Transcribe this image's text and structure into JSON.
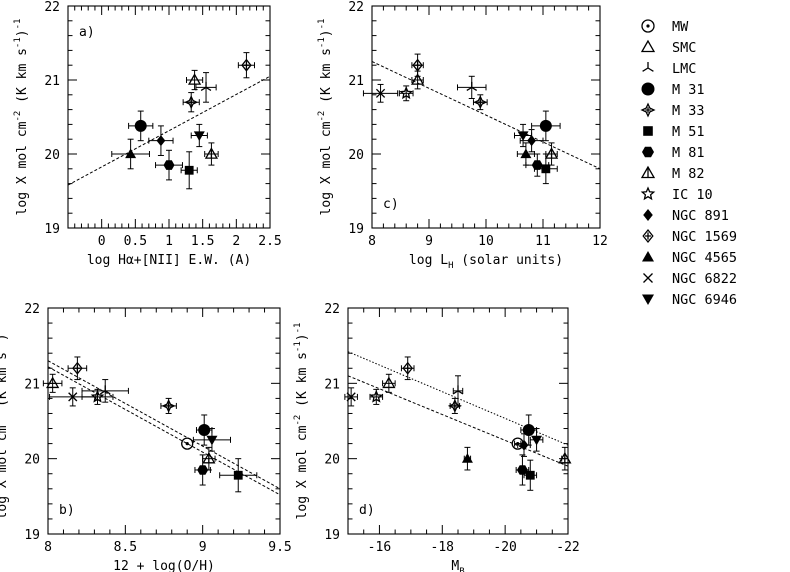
{
  "chart_data": [
    {
      "type": "scatter",
      "panel_label": "a)",
      "xlabel": "log Hα+[NII] E.W. (A)",
      "ylabel": "log X mol cm⁻² (K km s⁻¹)⁻¹",
      "xlim": [
        -0.5,
        2.5
      ],
      "ylim": [
        19,
        22
      ],
      "xticks": [
        "0",
        "0.5",
        "1",
        "1.5",
        "2",
        "2.5"
      ],
      "yticks": [
        "19",
        "20",
        "21",
        "22"
      ],
      "fit_lines": [
        {
          "x": [
            -0.5,
            2.5
          ],
          "y": [
            19.58,
            21.05
          ],
          "style": "dashed"
        }
      ],
      "points": [
        {
          "galaxy": "NGC 4565",
          "x": 0.43,
          "y": 20.0,
          "xerr": 0.28,
          "yerr": 0.2
        },
        {
          "galaxy": "M 31",
          "x": 0.58,
          "y": 20.38,
          "xerr": 0.18,
          "yerr": 0.2
        },
        {
          "galaxy": "NGC 891",
          "x": 0.88,
          "y": 20.18,
          "xerr": 0.18,
          "yerr": 0.2
        },
        {
          "galaxy": "M 81",
          "x": 1.0,
          "y": 19.85,
          "xerr": 0.2,
          "yerr": 0.2
        },
        {
          "galaxy": "M 51",
          "x": 1.3,
          "y": 19.78,
          "xerr": 0.12,
          "yerr": 0.25
        },
        {
          "galaxy": "M 33",
          "x": 1.33,
          "y": 20.7,
          "xerr": 0.12,
          "yerr": 0.13
        },
        {
          "galaxy": "SMC",
          "x": 1.38,
          "y": 21.0,
          "xerr": 0.12,
          "yerr": 0.13
        },
        {
          "galaxy": "NGC 6946",
          "x": 1.45,
          "y": 20.25,
          "xerr": 0.12,
          "yerr": 0.15
        },
        {
          "galaxy": "LMC",
          "x": 1.55,
          "y": 20.9,
          "xerr": 0.15,
          "yerr": 0.2
        },
        {
          "galaxy": "M 82",
          "x": 1.63,
          "y": 20.0,
          "xerr": 0.1,
          "yerr": 0.15
        },
        {
          "galaxy": "NGC 1569",
          "x": 2.15,
          "y": 21.2,
          "xerr": 0.12,
          "yerr": 0.17
        }
      ]
    },
    {
      "type": "scatter",
      "panel_label": "c)",
      "xlabel": "log L_H (solar units)",
      "ylabel": "log X mol cm⁻² (K km s⁻¹)⁻¹",
      "xlim": [
        8,
        12
      ],
      "ylim": [
        19,
        22
      ],
      "xticks": [
        "8",
        "9",
        "10",
        "11",
        "12"
      ],
      "yticks": [
        "19",
        "20",
        "21",
        "22"
      ],
      "fit_lines": [
        {
          "x": [
            8,
            12
          ],
          "y": [
            21.25,
            19.8
          ],
          "style": "dashed"
        }
      ],
      "points": [
        {
          "galaxy": "NGC 6822",
          "x": 8.15,
          "y": 20.82,
          "xerr": 0.3,
          "yerr": 0.12
        },
        {
          "galaxy": "IC 10",
          "x": 8.6,
          "y": 20.82,
          "xerr": 0.12,
          "yerr": 0.1
        },
        {
          "galaxy": "SMC",
          "x": 8.8,
          "y": 21.0,
          "xerr": 0.1,
          "yerr": 0.12
        },
        {
          "galaxy": "NGC 1569",
          "x": 8.8,
          "y": 21.2,
          "xerr": 0.1,
          "yerr": 0.15
        },
        {
          "galaxy": "LMC",
          "x": 9.75,
          "y": 20.9,
          "xerr": 0.25,
          "yerr": 0.15
        },
        {
          "galaxy": "M 33",
          "x": 9.9,
          "y": 20.7,
          "xerr": 0.12,
          "yerr": 0.1
        },
        {
          "galaxy": "NGC 6946",
          "x": 10.65,
          "y": 20.25,
          "xerr": 0.15,
          "yerr": 0.15
        },
        {
          "galaxy": "NGC 4565",
          "x": 10.7,
          "y": 20.0,
          "xerr": 0.15,
          "yerr": 0.15
        },
        {
          "galaxy": "NGC 891",
          "x": 10.8,
          "y": 20.18,
          "xerr": 0.2,
          "yerr": 0.15
        },
        {
          "galaxy": "M 81",
          "x": 10.9,
          "y": 19.85,
          "xerr": 0.2,
          "yerr": 0.15
        },
        {
          "galaxy": "M 31",
          "x": 11.05,
          "y": 20.38,
          "xerr": 0.25,
          "yerr": 0.2
        },
        {
          "galaxy": "M 51",
          "x": 11.05,
          "y": 19.8,
          "xerr": 0.2,
          "yerr": 0.2
        },
        {
          "galaxy": "M 82",
          "x": 11.15,
          "y": 20.0,
          "xerr": 0.1,
          "yerr": 0.15
        }
      ]
    },
    {
      "type": "scatter",
      "panel_label": "b)",
      "xlabel": "12 + log(O/H)",
      "ylabel": "log X mol cm⁻² (K km s⁻¹)⁻¹",
      "xlim": [
        8,
        9.5
      ],
      "ylim": [
        19,
        22
      ],
      "xticks": [
        "8",
        "8.5",
        "9",
        "9.5"
      ],
      "yticks": [
        "19",
        "20",
        "21",
        "22"
      ],
      "fit_lines": [
        {
          "x": [
            8,
            9.5
          ],
          "y": [
            21.3,
            19.6
          ],
          "style": "dashed"
        },
        {
          "x": [
            8,
            9.5
          ],
          "y": [
            21.22,
            19.52
          ],
          "style": "dashed"
        }
      ],
      "points": [
        {
          "galaxy": "SMC",
          "x": 8.03,
          "y": 21.0,
          "xerr": 0.06,
          "yerr": 0.12
        },
        {
          "galaxy": "NGC 6822",
          "x": 8.16,
          "y": 20.82,
          "xerr": 0.15,
          "yerr": 0.12
        },
        {
          "galaxy": "NGC 1569",
          "x": 8.19,
          "y": 21.2,
          "xerr": 0.06,
          "yerr": 0.15
        },
        {
          "galaxy": "IC 10",
          "x": 8.32,
          "y": 20.82,
          "xerr": 0.1,
          "yerr": 0.1
        },
        {
          "galaxy": "LMC",
          "x": 8.37,
          "y": 20.9,
          "xerr": 0.15,
          "yerr": 0.15
        },
        {
          "galaxy": "M 33",
          "x": 8.78,
          "y": 20.7,
          "xerr": 0.05,
          "yerr": 0.1
        },
        {
          "galaxy": "MW",
          "x": 8.9,
          "y": 20.2,
          "xerr": 0.0,
          "yerr": 0.0
        },
        {
          "galaxy": "M 81",
          "x": 9.0,
          "y": 19.85,
          "xerr": 0.05,
          "yerr": 0.2
        },
        {
          "galaxy": "M 31",
          "x": 9.01,
          "y": 20.38,
          "xerr": 0.05,
          "yerr": 0.2
        },
        {
          "galaxy": "M 82",
          "x": 9.04,
          "y": 20.0,
          "xerr": 0.04,
          "yerr": 0.15
        },
        {
          "galaxy": "NGC 6946",
          "x": 9.06,
          "y": 20.25,
          "xerr": 0.12,
          "yerr": 0.15
        },
        {
          "galaxy": "M 51",
          "x": 9.23,
          "y": 19.78,
          "xerr": 0.12,
          "yerr": 0.22
        }
      ]
    },
    {
      "type": "scatter",
      "panel_label": "d)",
      "xlabel": "M_B",
      "ylabel": "log X mol cm⁻² (K km s⁻¹)⁻¹",
      "xlim": [
        -15,
        -22
      ],
      "ylim": [
        19,
        22
      ],
      "xticks": [
        "-16",
        "-18",
        "-20",
        "-22"
      ],
      "yticks": [
        "19",
        "20",
        "21",
        "22"
      ],
      "fit_lines": [
        {
          "x": [
            -15,
            -22
          ],
          "y": [
            21.1,
            19.9
          ],
          "style": "dashed"
        },
        {
          "x": [
            -15,
            -22
          ],
          "y": [
            21.42,
            20.18
          ],
          "style": "dotted"
        }
      ],
      "points": [
        {
          "galaxy": "NGC 6822",
          "x": -15.1,
          "y": 20.82,
          "xerr": 0.2,
          "yerr": 0.12
        },
        {
          "galaxy": "IC 10",
          "x": -15.9,
          "y": 20.82,
          "xerr": 0.2,
          "yerr": 0.1
        },
        {
          "galaxy": "SMC",
          "x": -16.3,
          "y": 21.0,
          "xerr": 0.2,
          "yerr": 0.12
        },
        {
          "galaxy": "NGC 1569",
          "x": -16.9,
          "y": 21.2,
          "xerr": 0.2,
          "yerr": 0.15
        },
        {
          "galaxy": "M 33",
          "x": -18.4,
          "y": 20.7,
          "xerr": 0.15,
          "yerr": 0.1
        },
        {
          "galaxy": "LMC",
          "x": -18.5,
          "y": 20.9,
          "xerr": 0.15,
          "yerr": 0.2
        },
        {
          "galaxy": "NGC 4565",
          "x": -18.8,
          "y": 20.0,
          "xerr": 0.1,
          "yerr": 0.15
        },
        {
          "galaxy": "MW",
          "x": -20.4,
          "y": 20.2,
          "xerr": 0.1,
          "yerr": 0.0
        },
        {
          "galaxy": "NGC 891",
          "x": -20.6,
          "y": 20.18,
          "xerr": 0.2,
          "yerr": 0.15
        },
        {
          "galaxy": "M 81",
          "x": -20.55,
          "y": 19.85,
          "xerr": 0.2,
          "yerr": 0.2
        },
        {
          "galaxy": "M 31",
          "x": -20.75,
          "y": 20.38,
          "xerr": 0.25,
          "yerr": 0.2
        },
        {
          "galaxy": "M 51",
          "x": -20.8,
          "y": 19.78,
          "xerr": 0.2,
          "yerr": 0.2
        },
        {
          "galaxy": "NGC 6946",
          "x": -21.0,
          "y": 20.25,
          "xerr": 0.2,
          "yerr": 0.15
        },
        {
          "galaxy": "M 82",
          "x": -21.9,
          "y": 20.0,
          "xerr": 0.1,
          "yerr": 0.15
        }
      ]
    }
  ],
  "legend": [
    {
      "label": "MW",
      "marker": "circle-dot"
    },
    {
      "label": "SMC",
      "marker": "triangle-open"
    },
    {
      "label": "LMC",
      "marker": "tripod"
    },
    {
      "label": "M 31",
      "marker": "circle-filled"
    },
    {
      "label": "M 33",
      "marker": "star4-open"
    },
    {
      "label": "M 51",
      "marker": "square-filled"
    },
    {
      "label": "M 81",
      "marker": "hexagon-filled"
    },
    {
      "label": "M 82",
      "marker": "triangle-skeletal"
    },
    {
      "label": "IC 10",
      "marker": "star5-open"
    },
    {
      "label": "NGC 891",
      "marker": "diamond-filled"
    },
    {
      "label": "NGC 1569",
      "marker": "diamond-open"
    },
    {
      "label": "NGC 4565",
      "marker": "triangle-filled"
    },
    {
      "label": "NGC 6822",
      "marker": "cross"
    },
    {
      "label": "NGC 6946",
      "marker": "triangle-down-filled"
    }
  ]
}
